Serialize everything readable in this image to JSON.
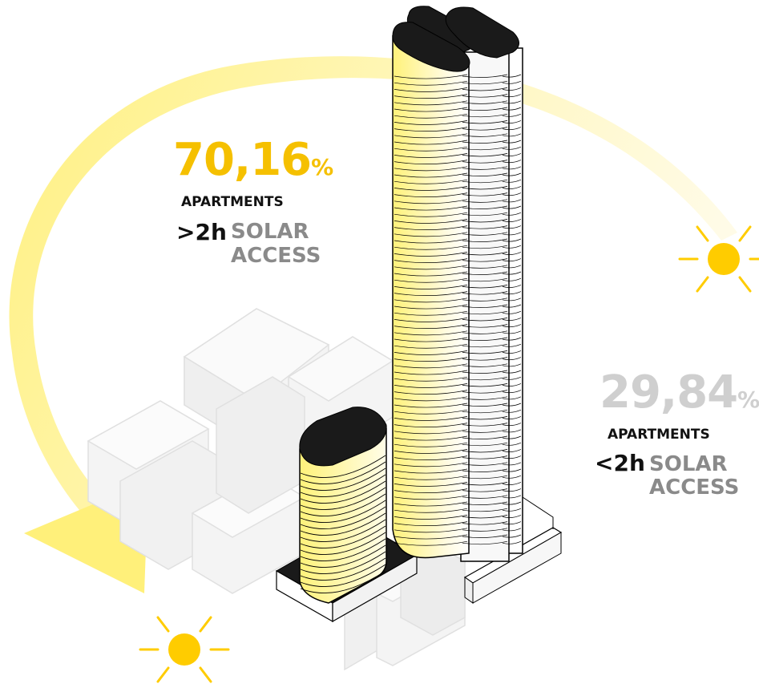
{
  "high_access": {
    "value": "70,16",
    "percent_sign": "%",
    "apartments_label": "APARTMENTS",
    "hours_label": ">2h",
    "solar_label": "SOLAR",
    "access_label": "ACCESS"
  },
  "low_access": {
    "value": "29,84",
    "percent_sign": "%",
    "apartments_label": "APARTMENTS",
    "hours_label": "<2h",
    "solar_label": "SOLAR",
    "access_label": "ACCESS"
  },
  "colors": {
    "sun": "#ffcc00",
    "sun_arc": "#fff3a6",
    "high_value": "#f5c000",
    "low_value": "#cfcfcf",
    "label_dark": "#111111",
    "label_gray": "#8a8a8a",
    "context_buildings": "#f3f3f3",
    "tower_roof": "#1a1a1a"
  },
  "icons": [
    "sun-icon-morning",
    "sun-icon-evening",
    "sun-path-arrow"
  ]
}
